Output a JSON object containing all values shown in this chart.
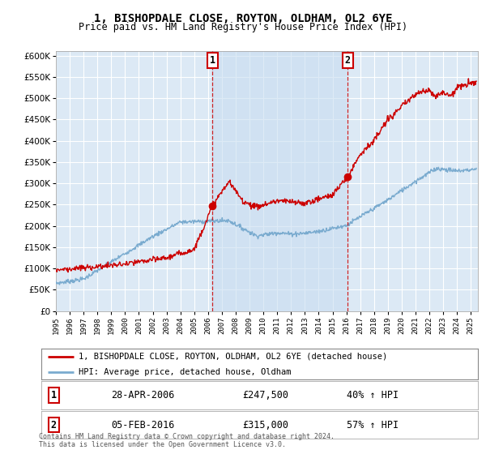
{
  "title": "1, BISHOPDALE CLOSE, ROYTON, OLDHAM, OL2 6YE",
  "subtitle": "Price paid vs. HM Land Registry's House Price Index (HPI)",
  "ylim": [
    0,
    610000
  ],
  "yticks": [
    0,
    50000,
    100000,
    150000,
    200000,
    250000,
    300000,
    350000,
    400000,
    450000,
    500000,
    550000,
    600000
  ],
  "xlim_start": 1995.0,
  "xlim_end": 2025.5,
  "plot_bg": "#dce9f5",
  "shade_bg": "#c8ddf0",
  "grid_color": "#ffffff",
  "sale1_x": 2006.32,
  "sale1_y": 247500,
  "sale2_x": 2016.09,
  "sale2_y": 315000,
  "sale1_label": "28-APR-2006",
  "sale1_price": "£247,500",
  "sale1_hpi": "40% ↑ HPI",
  "sale2_label": "05-FEB-2016",
  "sale2_price": "£315,000",
  "sale2_hpi": "57% ↑ HPI",
  "legend_line1": "1, BISHOPDALE CLOSE, ROYTON, OLDHAM, OL2 6YE (detached house)",
  "legend_line2": "HPI: Average price, detached house, Oldham",
  "footer": "Contains HM Land Registry data © Crown copyright and database right 2024.\nThis data is licensed under the Open Government Licence v3.0.",
  "red_color": "#cc0000",
  "blue_color": "#7aabcf"
}
